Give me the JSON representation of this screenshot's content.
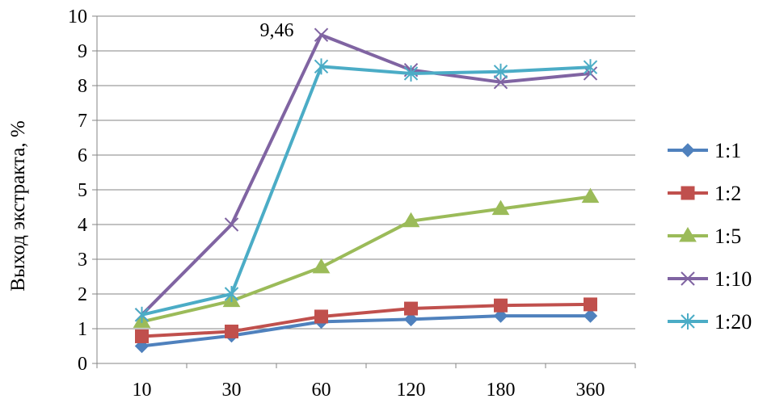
{
  "chart_data": {
    "type": "line",
    "title": "",
    "xlabel": "",
    "ylabel": "Выход экстракта, %",
    "categories": [
      "10",
      "30",
      "60",
      "120",
      "180",
      "360"
    ],
    "ylim": [
      0,
      10
    ],
    "yticks": [
      "0",
      "1",
      "2",
      "3",
      "4",
      "5",
      "6",
      "7",
      "8",
      "9",
      "10"
    ],
    "grid": true,
    "legend_position": "right",
    "annotation": {
      "text": "9,46",
      "series": "1:10",
      "point_index": 2
    },
    "series": [
      {
        "name": "1:1",
        "color": "#4f81bd",
        "marker": "diamond",
        "values": [
          0.5,
          0.8,
          1.2,
          1.27,
          1.37,
          1.37
        ]
      },
      {
        "name": "1:2",
        "color": "#c0504d",
        "marker": "square",
        "values": [
          0.78,
          0.92,
          1.35,
          1.58,
          1.67,
          1.7
        ]
      },
      {
        "name": "1:5",
        "color": "#9bbb59",
        "marker": "triangle",
        "values": [
          1.2,
          1.8,
          2.77,
          4.1,
          4.45,
          4.8
        ]
      },
      {
        "name": "1:10",
        "color": "#8064a2",
        "marker": "x",
        "values": [
          1.4,
          4.0,
          9.46,
          8.45,
          8.1,
          8.35
        ]
      },
      {
        "name": "1:20",
        "color": "#4bacc6",
        "marker": "star",
        "values": [
          1.4,
          2.0,
          8.55,
          8.35,
          8.4,
          8.53
        ]
      }
    ]
  }
}
